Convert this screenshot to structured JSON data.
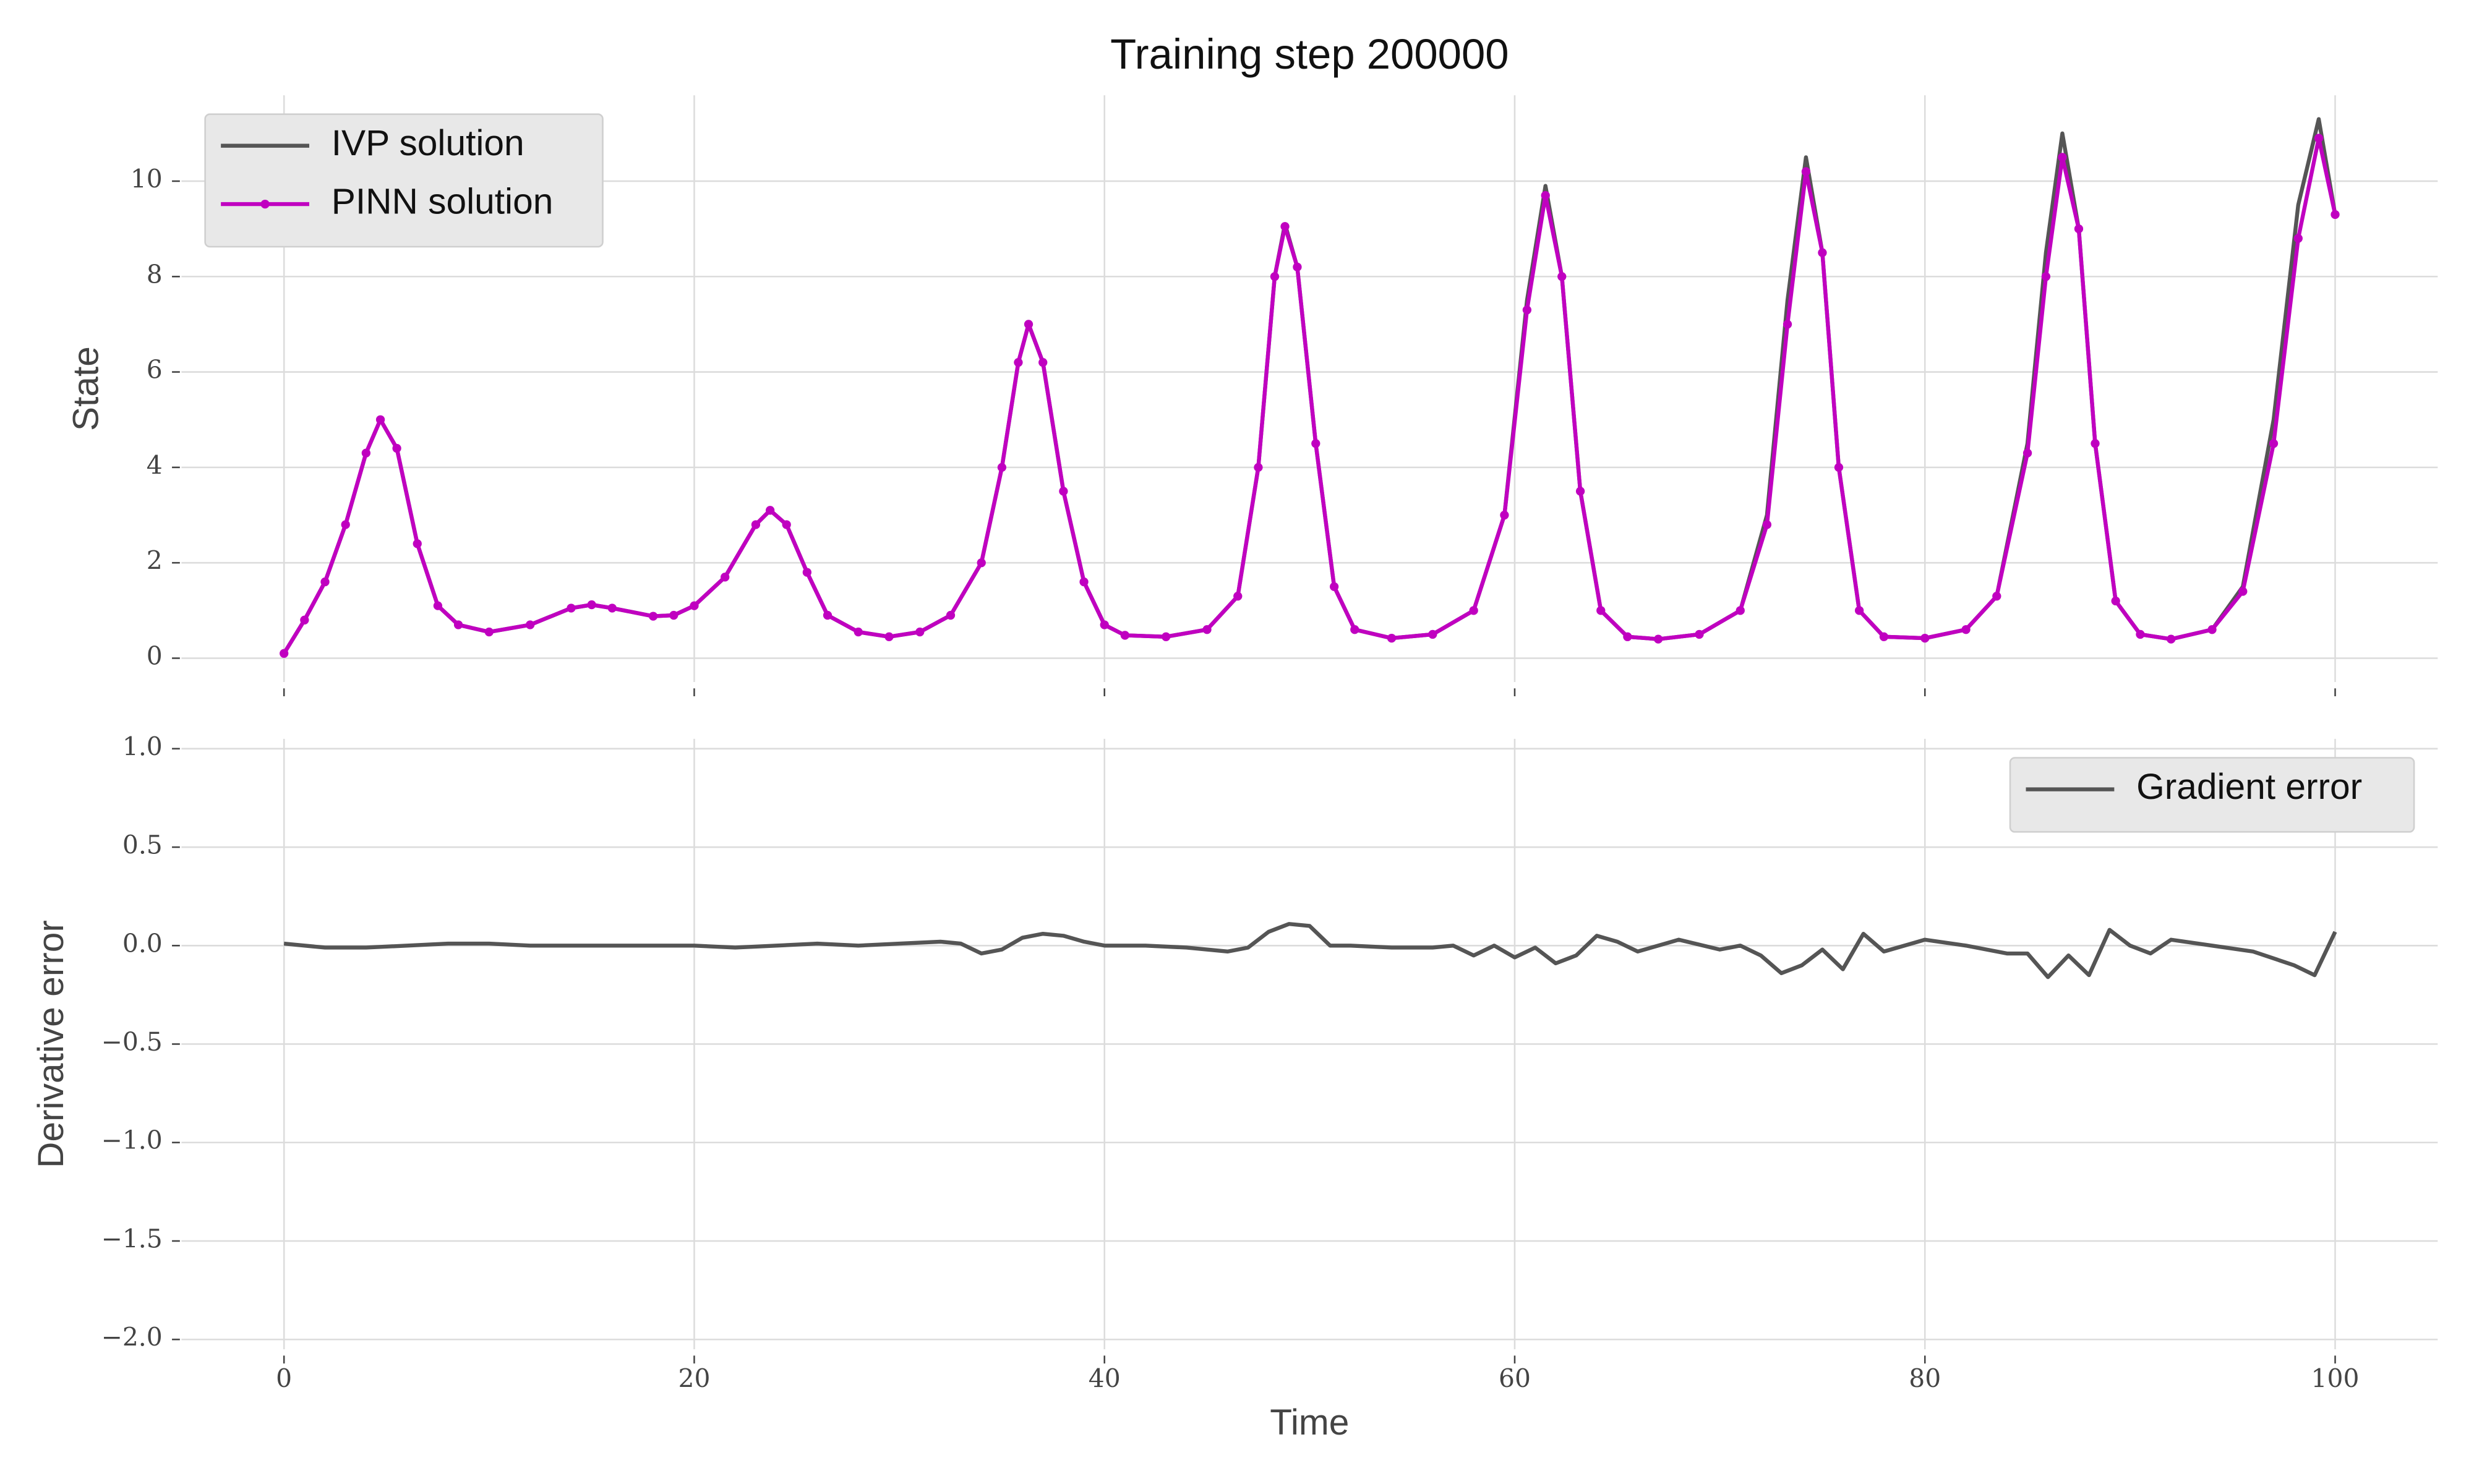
{
  "chart_data": [
    {
      "type": "line",
      "title": "Training step 200000",
      "ylabel": "State",
      "x": [
        0,
        1,
        2,
        3,
        4,
        4.7,
        5.5,
        6.5,
        7.5,
        8.5,
        10,
        12,
        14,
        15,
        16,
        18,
        19,
        20,
        21.5,
        23,
        23.7,
        24.5,
        25.5,
        26.5,
        28,
        29.5,
        31,
        32.5,
        34,
        35,
        35.8,
        36.3,
        37,
        38,
        39,
        40,
        41,
        43,
        45,
        46.5,
        47.5,
        48.3,
        48.8,
        49.4,
        50.3,
        51.2,
        52.2,
        54,
        56,
        58,
        59.5,
        60.6,
        61.5,
        62.3,
        63.2,
        64.2,
        65.5,
        67,
        69,
        71,
        72.3,
        73.3,
        74.2,
        75,
        75.8,
        76.8,
        78,
        80,
        82,
        83.5,
        85,
        85.9,
        86.7,
        87.5,
        88.3,
        89.3,
        90.5,
        92,
        94,
        95.5,
        97,
        98.2,
        99.2,
        100
      ],
      "series": [
        {
          "name": "IVP solution",
          "color": "#555555",
          "values": [
            0.1,
            0.8,
            1.6,
            2.8,
            4.3,
            5.0,
            4.4,
            2.4,
            1.1,
            0.7,
            0.55,
            0.7,
            1.05,
            1.12,
            1.05,
            0.88,
            0.9,
            1.1,
            1.7,
            2.8,
            3.1,
            2.8,
            1.8,
            0.9,
            0.55,
            0.45,
            0.55,
            0.9,
            2.0,
            4.0,
            6.2,
            7.0,
            6.2,
            3.5,
            1.6,
            0.7,
            0.48,
            0.45,
            0.6,
            1.3,
            4.0,
            8.0,
            9.1,
            8.2,
            4.5,
            1.5,
            0.6,
            0.42,
            0.5,
            1.0,
            3.0,
            7.5,
            9.9,
            8.0,
            3.5,
            1.0,
            0.45,
            0.4,
            0.5,
            1.0,
            3.0,
            7.5,
            10.5,
            8.5,
            4.0,
            1.0,
            0.45,
            0.42,
            0.6,
            1.3,
            4.5,
            8.5,
            11.0,
            9.0,
            4.5,
            1.2,
            0.5,
            0.4,
            0.6,
            1.5,
            5.0,
            9.5,
            11.3,
            9.3
          ]
        },
        {
          "name": "PINN solution",
          "color": "#c000c0",
          "marker": "o",
          "values": [
            0.1,
            0.8,
            1.6,
            2.8,
            4.3,
            5.0,
            4.4,
            2.4,
            1.1,
            0.7,
            0.55,
            0.7,
            1.05,
            1.12,
            1.05,
            0.88,
            0.9,
            1.1,
            1.7,
            2.8,
            3.1,
            2.8,
            1.8,
            0.9,
            0.55,
            0.45,
            0.55,
            0.9,
            2.0,
            4.0,
            6.2,
            7.0,
            6.2,
            3.5,
            1.6,
            0.7,
            0.48,
            0.45,
            0.6,
            1.3,
            4.0,
            8.0,
            9.05,
            8.2,
            4.5,
            1.5,
            0.6,
            0.42,
            0.5,
            1.0,
            3.0,
            7.3,
            9.7,
            8.0,
            3.5,
            1.0,
            0.45,
            0.4,
            0.5,
            1.0,
            2.8,
            7.0,
            10.2,
            8.5,
            4.0,
            1.0,
            0.45,
            0.42,
            0.6,
            1.3,
            4.3,
            8.0,
            10.5,
            9.0,
            4.5,
            1.2,
            0.5,
            0.4,
            0.6,
            1.4,
            4.5,
            8.8,
            10.9,
            9.3
          ]
        }
      ],
      "xlim": [
        -5,
        105
      ],
      "xticks": [
        0,
        20,
        40,
        60,
        80,
        100
      ],
      "ylim": [
        -0.5,
        11.8
      ],
      "yticks": [
        0,
        2,
        4,
        6,
        8,
        10
      ],
      "grid": true,
      "legend": "upper left"
    },
    {
      "type": "line",
      "xlabel": "Time",
      "ylabel": "Derivative error",
      "x": [
        0,
        2,
        4,
        6,
        8,
        10,
        12,
        14,
        16,
        18,
        20,
        22,
        24,
        26,
        28,
        30,
        32,
        33,
        34,
        35,
        36,
        37,
        38,
        39,
        40,
        42,
        44,
        46,
        47,
        48,
        49,
        50,
        51,
        52,
        54,
        56,
        57,
        58,
        59,
        60,
        61,
        62,
        63,
        64,
        65,
        66,
        68,
        70,
        71,
        72,
        73,
        74,
        75,
        76,
        77,
        78,
        80,
        82,
        84,
        85,
        86,
        87,
        88,
        89,
        90,
        91,
        92,
        94,
        96,
        98,
        99,
        100
      ],
      "series": [
        {
          "name": "Gradient error",
          "color": "#555555",
          "values": [
            0.01,
            -0.01,
            -0.01,
            0.0,
            0.01,
            0.01,
            0.0,
            0.0,
            0.0,
            0.0,
            0.0,
            -0.01,
            0.0,
            0.01,
            0.0,
            0.01,
            0.02,
            0.01,
            -0.04,
            -0.02,
            0.04,
            0.06,
            0.05,
            0.02,
            0.0,
            0.0,
            -0.01,
            -0.03,
            -0.01,
            0.07,
            0.11,
            0.1,
            0.0,
            0.0,
            -0.01,
            -0.01,
            0.0,
            -0.05,
            0.0,
            -0.06,
            -0.01,
            -0.09,
            -0.05,
            0.05,
            0.02,
            -0.03,
            0.03,
            -0.02,
            0.0,
            -0.05,
            -0.14,
            -0.1,
            -0.02,
            -0.12,
            0.06,
            -0.03,
            0.03,
            0.0,
            -0.04,
            -0.04,
            -0.16,
            -0.05,
            -0.15,
            0.08,
            0.0,
            -0.04,
            0.03,
            0.0,
            -0.03,
            -0.1,
            -0.15,
            0.07
          ]
        }
      ],
      "xlim": [
        -5,
        105
      ],
      "xticks": [
        0,
        20,
        40,
        60,
        80,
        100
      ],
      "ylim": [
        -2.05,
        1.05
      ],
      "yticks": [
        {
          "value": -2.0,
          "label": "−2.0"
        },
        {
          "value": -1.5,
          "label": "−1.5"
        },
        {
          "value": -1.0,
          "label": "−1.0"
        },
        {
          "value": -0.5,
          "label": "−0.5"
        },
        {
          "value": 0,
          "label": "0.0"
        },
        0.5,
        {
          "value": 1.0,
          "label": "1.0"
        }
      ],
      "grid": true,
      "legend": "upper right"
    }
  ]
}
